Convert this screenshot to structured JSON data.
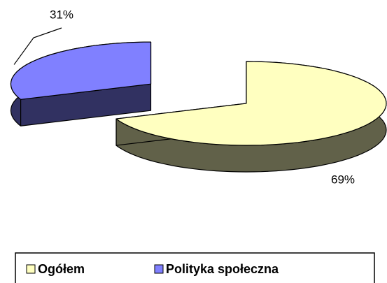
{
  "chart_data": {
    "type": "pie3d",
    "categories": [
      "Ogółem",
      "Polityka społeczna"
    ],
    "values": [
      69,
      31
    ],
    "value_labels": [
      "69%",
      "31%"
    ],
    "colors": [
      "#ffffc0",
      "#8080ff"
    ],
    "exploded": true,
    "legend": "bottom"
  }
}
